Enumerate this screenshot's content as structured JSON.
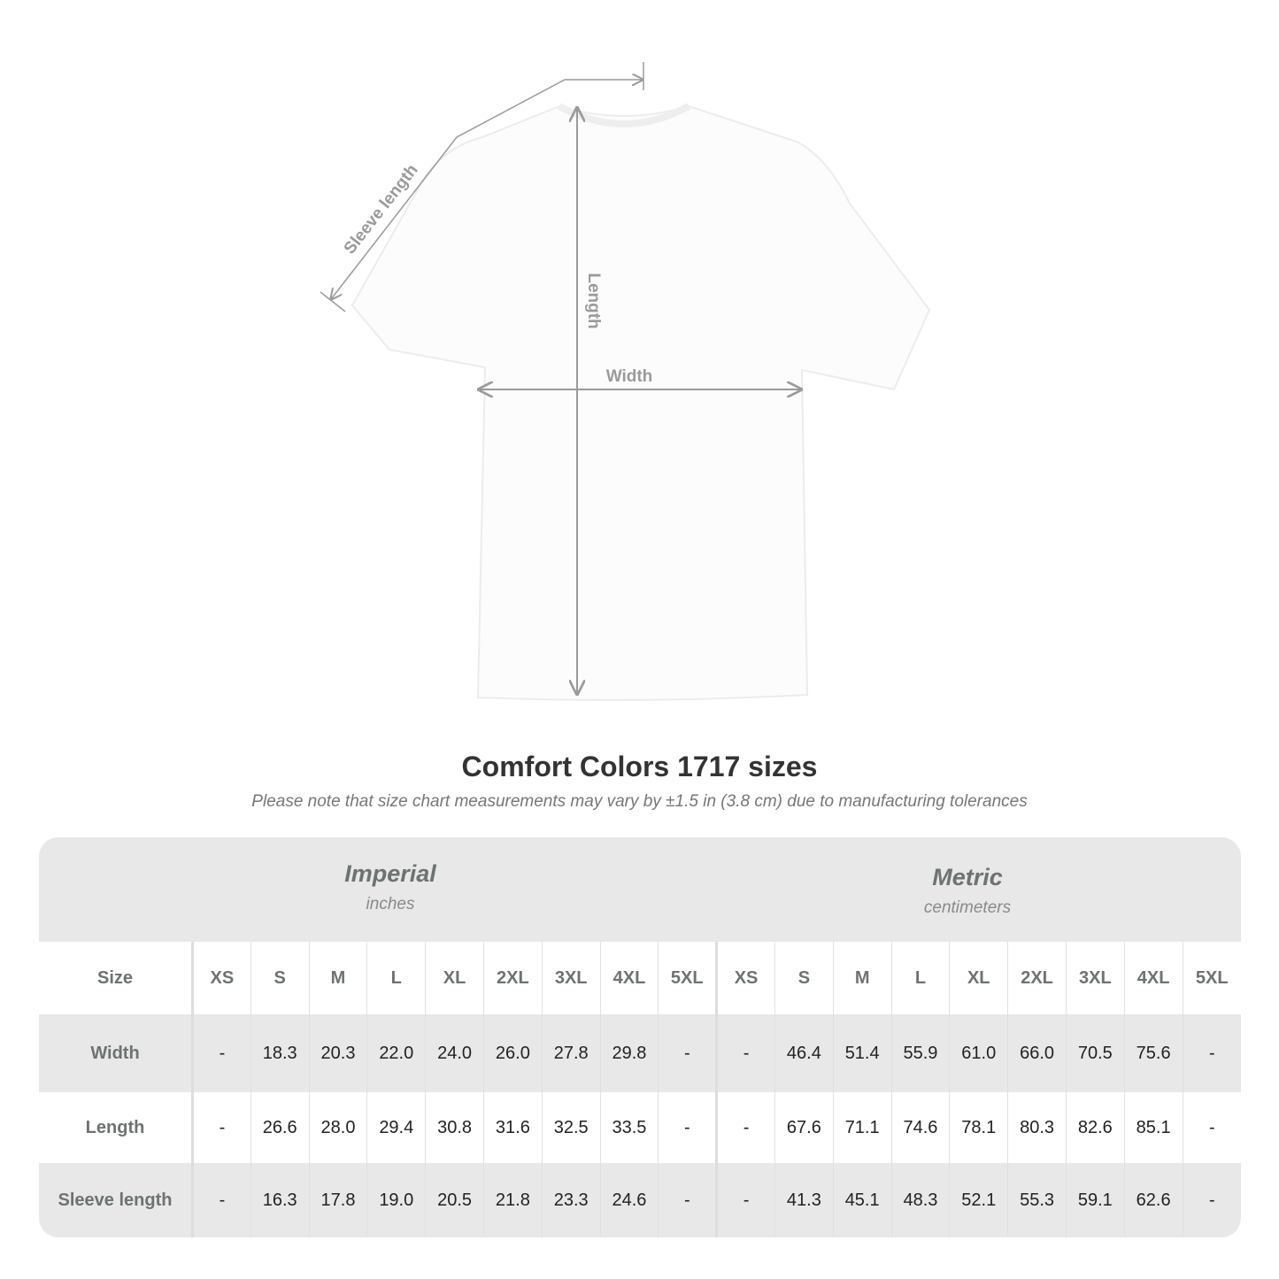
{
  "diagram": {
    "labels": {
      "sleeve": "Sleeve length",
      "length": "Length",
      "width": "Width"
    },
    "line_color": "#9a9a9a"
  },
  "title": "Comfort Colors 1717 sizes",
  "note": "Please note that size chart measurements may vary by ±1.5 in (3.8 cm) due to manufacturing tolerances",
  "table": {
    "imperial": {
      "name": "Imperial",
      "unit": "inches"
    },
    "metric": {
      "name": "Metric",
      "unit": "centimeters"
    },
    "size_label": "Size",
    "sizes": [
      "XS",
      "S",
      "M",
      "L",
      "XL",
      "2XL",
      "3XL",
      "4XL",
      "5XL"
    ],
    "rows": [
      {
        "label": "Width",
        "imperial": [
          "-",
          "18.3",
          "20.3",
          "22.0",
          "24.0",
          "26.0",
          "27.8",
          "29.8",
          "-"
        ],
        "metric": [
          "-",
          "46.4",
          "51.4",
          "55.9",
          "61.0",
          "66.0",
          "70.5",
          "75.6",
          "-"
        ]
      },
      {
        "label": "Length",
        "imperial": [
          "-",
          "26.6",
          "28.0",
          "29.4",
          "30.8",
          "31.6",
          "32.5",
          "33.5",
          "-"
        ],
        "metric": [
          "-",
          "67.6",
          "71.1",
          "74.6",
          "78.1",
          "80.3",
          "82.6",
          "85.1",
          "-"
        ]
      },
      {
        "label": "Sleeve length",
        "imperial": [
          "-",
          "16.3",
          "17.8",
          "19.0",
          "20.5",
          "21.8",
          "23.3",
          "24.6",
          "-"
        ],
        "metric": [
          "-",
          "41.3",
          "45.1",
          "48.3",
          "52.1",
          "55.3",
          "59.1",
          "62.6",
          "-"
        ]
      }
    ]
  }
}
